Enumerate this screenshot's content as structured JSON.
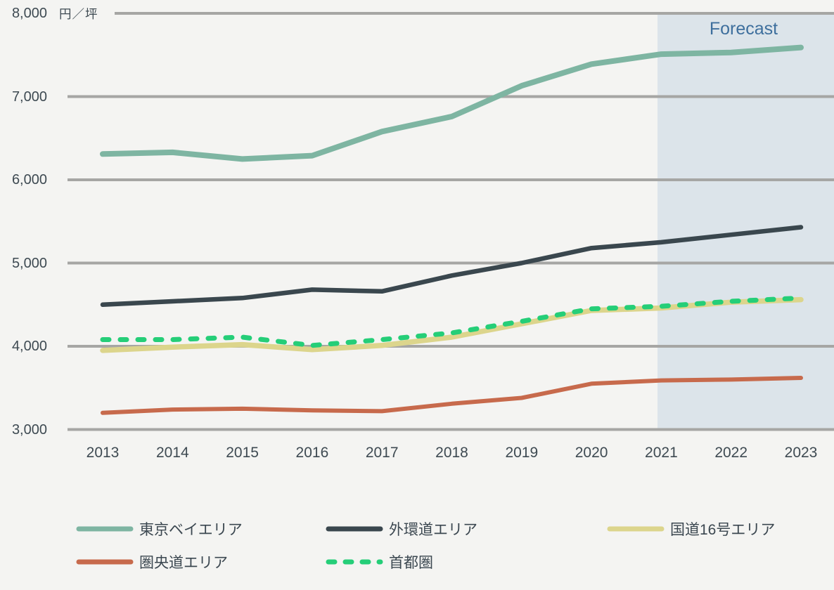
{
  "chart_data": {
    "type": "line",
    "title": "",
    "unit": "円／坪",
    "forecast_label": "Forecast",
    "x": [
      2013,
      2014,
      2015,
      2016,
      2017,
      2018,
      2019,
      2020,
      2021,
      2022,
      2023
    ],
    "series": [
      {
        "name": "東京ベイエリア",
        "color": "#7eb5a2",
        "style": "solid",
        "values": [
          6310,
          6330,
          6250,
          6290,
          6580,
          6760,
          7130,
          7390,
          7510,
          7530,
          7590
        ]
      },
      {
        "name": "外環道エリア",
        "color": "#3a474e",
        "style": "solid",
        "values": [
          4500,
          4540,
          4580,
          4680,
          4660,
          4850,
          5000,
          5180,
          5250,
          5340,
          5430
        ]
      },
      {
        "name": "国道16号エリア",
        "color": "#dcd58c",
        "style": "solid",
        "values": [
          3950,
          3990,
          4020,
          3960,
          4010,
          4110,
          4270,
          4430,
          4460,
          4530,
          4560
        ]
      },
      {
        "name": "圏央道エリア",
        "color": "#c76a4c",
        "style": "solid",
        "values": [
          3200,
          3240,
          3250,
          3230,
          3220,
          3310,
          3380,
          3550,
          3590,
          3600,
          3620
        ]
      },
      {
        "name": "首都圏",
        "color": "#25ce78",
        "style": "dashed",
        "values": [
          4080,
          4080,
          4110,
          4010,
          4080,
          4160,
          4300,
          4450,
          4480,
          4540,
          4580
        ]
      }
    ],
    "ylim": [
      3000,
      8000
    ],
    "yticks": [
      {
        "value": 8000,
        "label": "8,000"
      },
      {
        "value": 7000,
        "label": "7,000"
      },
      {
        "value": 6000,
        "label": "6,000"
      },
      {
        "value": 5000,
        "label": "5,000"
      },
      {
        "value": 4000,
        "label": "4,000"
      },
      {
        "value": 3000,
        "label": "3,000"
      }
    ],
    "grid": "horizontal",
    "legend_position": "bottom",
    "forecast_band": {
      "start_year": 2021,
      "color": "#dce4ea"
    },
    "colors": {
      "background": "#f4f4f2",
      "grid": "#a6a6a4",
      "axis_text": "#3e4a52",
      "forecast_text": "#3e6f9d"
    }
  }
}
